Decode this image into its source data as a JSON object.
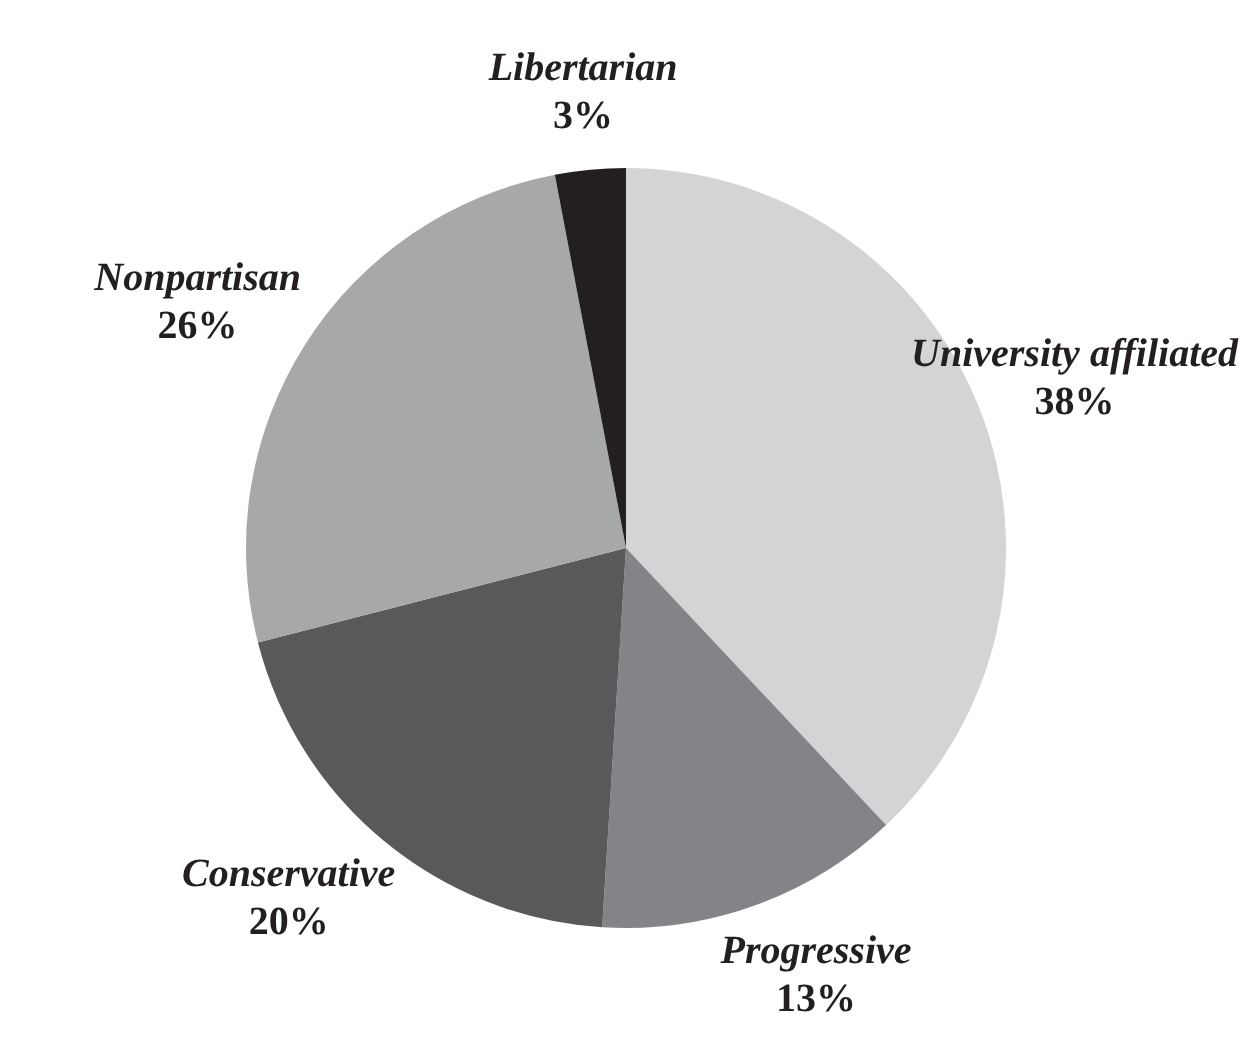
{
  "chart_data": {
    "type": "pie",
    "categories": [
      "University affiliated",
      "Progressive",
      "Conservative",
      "Nonpartisan",
      "Libertarian"
    ],
    "values": [
      38,
      13,
      20,
      26,
      3
    ],
    "value_labels": [
      "38%",
      "13%",
      "20%",
      "26%",
      "3%"
    ],
    "colors": [
      "#d4d4d6",
      "#838487",
      "#58595b",
      "#a7a8aa",
      "#231f20"
    ],
    "legend": false
  }
}
